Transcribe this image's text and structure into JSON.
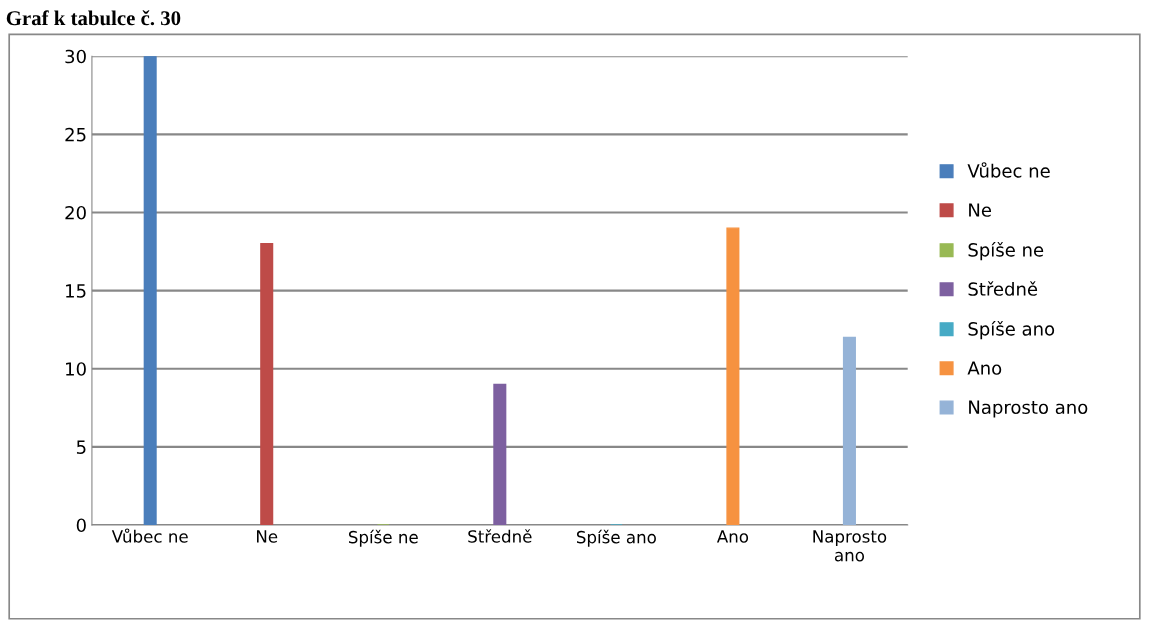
{
  "chart_data": {
    "type": "bar",
    "title": "Graf k tabulce č. 30",
    "categories": [
      "Vůbec ne",
      "Ne",
      "Spíše ne",
      "Středně",
      "Spíše ano",
      "Ano",
      "Naprosto\nano"
    ],
    "series": [
      {
        "name": "Vůbec ne",
        "color": "#4a7ebb",
        "values": [
          30,
          null,
          null,
          null,
          null,
          null,
          null
        ]
      },
      {
        "name": "Ne",
        "color": "#be4b48",
        "values": [
          null,
          18,
          null,
          null,
          null,
          null,
          null
        ]
      },
      {
        "name": "Spíše ne",
        "color": "#98b954",
        "values": [
          null,
          null,
          0,
          null,
          null,
          null,
          null
        ]
      },
      {
        "name": "Středně",
        "color": "#7d60a0",
        "values": [
          null,
          null,
          null,
          9,
          null,
          null,
          null
        ]
      },
      {
        "name": "Spíše ano",
        "color": "#46aac5",
        "values": [
          null,
          null,
          null,
          null,
          0,
          null,
          null
        ]
      },
      {
        "name": "Ano",
        "color": "#f69240",
        "values": [
          null,
          null,
          null,
          null,
          null,
          19,
          null
        ]
      },
      {
        "name": "Naprosto ano",
        "color": "#95b3d7",
        "values": [
          null,
          null,
          null,
          null,
          null,
          null,
          12
        ]
      }
    ],
    "ylim": [
      0,
      30
    ],
    "yticks": [
      0,
      5,
      10,
      15,
      20,
      25,
      30
    ],
    "grid": "y",
    "legend": "right"
  }
}
